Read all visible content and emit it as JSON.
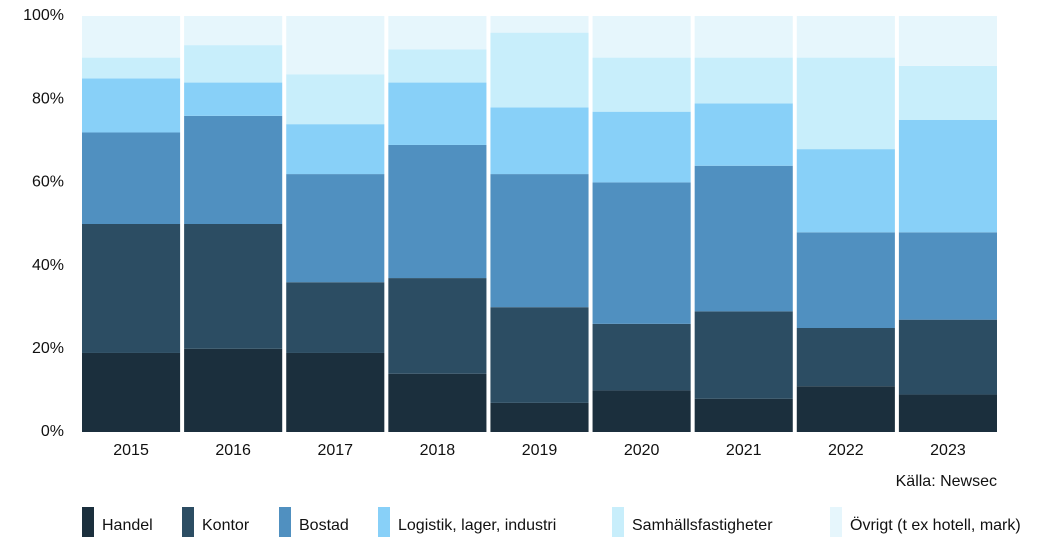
{
  "chart_data": {
    "type": "stacked_bar",
    "categories": [
      "2015",
      "2016",
      "2017",
      "2018",
      "2019",
      "2020",
      "2021",
      "2022",
      "2023"
    ],
    "series": [
      {
        "name": "Handel",
        "color": "#1b2f3d",
        "values": [
          19,
          20,
          19,
          14,
          7,
          10,
          8,
          11,
          9
        ]
      },
      {
        "name": "Kontor",
        "color": "#2c4d63",
        "values": [
          31,
          30,
          17,
          23,
          23,
          16,
          21,
          14,
          18
        ]
      },
      {
        "name": "Bostad",
        "color": "#5090c0",
        "values": [
          22,
          26,
          26,
          32,
          32,
          34,
          35,
          23,
          21
        ]
      },
      {
        "name": "Logistik, lager, industri",
        "color": "#88d0f8",
        "values": [
          13,
          8,
          12,
          15,
          16,
          17,
          15,
          20,
          27
        ]
      },
      {
        "name": "Samhällsfastigheter",
        "color": "#c8eefb",
        "values": [
          5,
          9,
          12,
          8,
          18,
          13,
          11,
          22,
          13
        ]
      },
      {
        "name": "Övrigt (t ex hotell, mark)",
        "color": "#e6f6fc",
        "values": [
          10,
          7,
          14,
          8,
          4,
          10,
          10,
          10,
          12
        ]
      }
    ],
    "ylim": [
      0,
      100
    ],
    "yticks": [
      {
        "value": 0,
        "label": "0%"
      },
      {
        "value": 20,
        "label": "20%"
      },
      {
        "value": 40,
        "label": "40%"
      },
      {
        "value": 60,
        "label": "60%"
      },
      {
        "value": 80,
        "label": "80%"
      },
      {
        "value": 100,
        "label": "100%"
      }
    ],
    "source": "Källa: Newsec"
  }
}
